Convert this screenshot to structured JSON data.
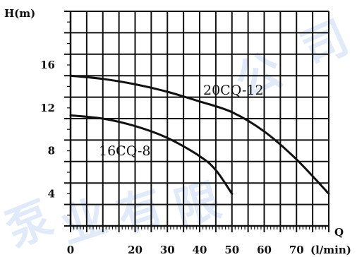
{
  "chart_data": {
    "type": "line",
    "title": "",
    "ylabel": "H(m)",
    "xlabel": "Q",
    "xunit": "(l/min)",
    "xlim": [
      0,
      80
    ],
    "ylim": [
      1,
      21
    ],
    "grid": true,
    "x_ticks": [
      0,
      20,
      30,
      40,
      50,
      60,
      70
    ],
    "x_tick_labels": [
      "0",
      "20",
      "30",
      "40",
      "50",
      "60",
      "70"
    ],
    "y_ticks": [
      4,
      8,
      12,
      16
    ],
    "y_tick_labels": [
      "4",
      "8",
      "12",
      "16"
    ],
    "series": [
      {
        "name": "20CQ-12",
        "x": [
          0,
          10,
          20,
          30,
          40,
          50,
          60,
          70,
          80
        ],
        "y": [
          15,
          14.7,
          14.2,
          13.5,
          12.6,
          11.6,
          9.8,
          7.2,
          4
        ]
      },
      {
        "name": "16CQ-8",
        "x": [
          0,
          10,
          20,
          30,
          40,
          45,
          50
        ],
        "y": [
          11.3,
          11,
          10.3,
          9.2,
          7.5,
          6.2,
          4
        ]
      }
    ],
    "color": "#111111"
  },
  "watermark": {
    "text": "泵业有限公司",
    "color": "#4a7fd6"
  }
}
